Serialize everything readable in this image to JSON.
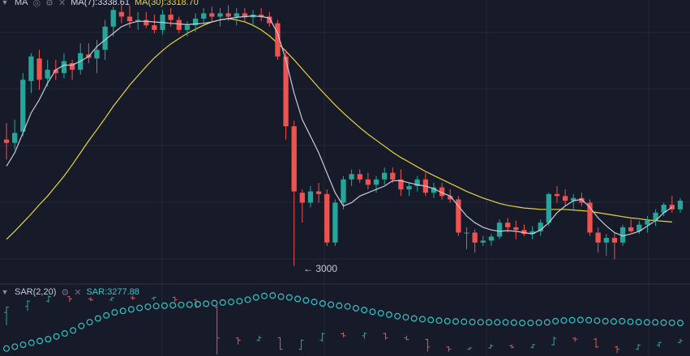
{
  "colors": {
    "background": "#161a29",
    "grid": "#242838",
    "separator": "#2f3446",
    "up": "#26a69a",
    "down": "#ef5350",
    "ma7": "#c9c9dc",
    "ma30": "#e8d43a",
    "sar_dot": "#2ec8c8"
  },
  "main_legend": {
    "collapse_icon": "chevron-down-icon",
    "indicator": "MA",
    "settings_icon": "gear-icon",
    "close_icon": "close-icon",
    "ma7_text": "MA(7):3338.61",
    "ma30_text": "MA(30):3318.70"
  },
  "sar_legend": {
    "collapse_icon": "chevron-down-icon",
    "indicator": "SAR(2,20)",
    "settings_icon": "gear-icon",
    "close_icon": "close-icon",
    "value_text": "SAR:3277.88"
  },
  "annotations": {
    "low_marker": "← 3000"
  },
  "chart_data": {
    "type": "candlestick",
    "series": {
      "candles": [
        [
          3200,
          3225,
          3170,
          3195
        ],
        [
          3195,
          3230,
          3185,
          3210
        ],
        [
          3212,
          3300,
          3205,
          3290
        ],
        [
          3288,
          3330,
          3270,
          3325
        ],
        [
          3322,
          3335,
          3275,
          3290
        ],
        [
          3292,
          3320,
          3280,
          3305
        ],
        [
          3305,
          3320,
          3290,
          3300
        ],
        [
          3300,
          3330,
          3292,
          3318
        ],
        [
          3315,
          3320,
          3290,
          3305
        ],
        [
          3305,
          3345,
          3298,
          3330
        ],
        [
          3328,
          3345,
          3315,
          3323
        ],
        [
          3322,
          3350,
          3300,
          3335
        ],
        [
          3335,
          3380,
          3320,
          3370
        ],
        [
          3370,
          3400,
          3355,
          3395
        ],
        [
          3392,
          3403,
          3375,
          3385
        ],
        [
          3385,
          3402,
          3368,
          3378
        ],
        [
          3378,
          3392,
          3365,
          3380
        ],
        [
          3380,
          3392,
          3368,
          3372
        ],
        [
          3372,
          3388,
          3360,
          3365
        ],
        [
          3365,
          3395,
          3358,
          3388
        ],
        [
          3388,
          3398,
          3370,
          3380
        ],
        [
          3380,
          3385,
          3360,
          3365
        ],
        [
          3365,
          3378,
          3355,
          3372
        ],
        [
          3372,
          3390,
          3362,
          3382
        ],
        [
          3382,
          3398,
          3372,
          3390
        ],
        [
          3390,
          3400,
          3378,
          3385
        ],
        [
          3385,
          3398,
          3370,
          3390
        ],
        [
          3390,
          3402,
          3378,
          3385
        ],
        [
          3385,
          3398,
          3372,
          3390
        ],
        [
          3390,
          3398,
          3378,
          3384
        ],
        [
          3384,
          3395,
          3370,
          3388
        ],
        [
          3388,
          3398,
          3378,
          3385
        ],
        [
          3385,
          3392,
          3370,
          3375
        ],
        [
          3375,
          3380,
          3320,
          3325
        ],
        [
          3325,
          3335,
          3200,
          3220
        ],
        [
          3220,
          3228,
          3010,
          3122
        ],
        [
          3120,
          3125,
          3075,
          3105
        ],
        [
          3105,
          3130,
          3098,
          3122
        ],
        [
          3122,
          3135,
          3105,
          3118
        ],
        [
          3118,
          3125,
          3040,
          3045
        ],
        [
          3045,
          3110,
          3040,
          3105
        ],
        [
          3105,
          3145,
          3095,
          3140
        ],
        [
          3140,
          3155,
          3130,
          3148
        ],
        [
          3148,
          3155,
          3135,
          3140
        ],
        [
          3140,
          3150,
          3125,
          3132
        ],
        [
          3132,
          3145,
          3120,
          3140
        ],
        [
          3140,
          3158,
          3132,
          3150
        ],
        [
          3150,
          3158,
          3135,
          3140
        ],
        [
          3140,
          3155,
          3115,
          3125
        ],
        [
          3125,
          3135,
          3115,
          3130
        ],
        [
          3130,
          3145,
          3122,
          3140
        ],
        [
          3140,
          3150,
          3115,
          3120
        ],
        [
          3120,
          3135,
          3112,
          3128
        ],
        [
          3128,
          3135,
          3110,
          3115
        ],
        [
          3115,
          3125,
          3105,
          3110
        ],
        [
          3110,
          3115,
          3055,
          3060
        ],
        [
          3060,
          3068,
          3035,
          3060
        ],
        [
          3060,
          3065,
          3030,
          3045
        ],
        [
          3045,
          3055,
          3040,
          3048
        ],
        [
          3048,
          3058,
          3040,
          3054
        ],
        [
          3054,
          3080,
          3050,
          3075
        ],
        [
          3075,
          3082,
          3060,
          3068
        ],
        [
          3068,
          3078,
          3050,
          3064
        ],
        [
          3064,
          3072,
          3055,
          3058
        ],
        [
          3058,
          3070,
          3050,
          3062
        ],
        [
          3062,
          3080,
          3055,
          3075
        ],
        [
          3075,
          3120,
          3070,
          3118
        ],
        [
          3118,
          3130,
          3105,
          3115
        ],
        [
          3115,
          3125,
          3100,
          3108
        ],
        [
          3108,
          3118,
          3095,
          3112
        ],
        [
          3112,
          3120,
          3100,
          3105
        ],
        [
          3105,
          3110,
          3055,
          3060
        ],
        [
          3060,
          3068,
          3030,
          3045
        ],
        [
          3045,
          3058,
          3025,
          3052
        ],
        [
          3052,
          3060,
          3020,
          3045
        ],
        [
          3045,
          3072,
          3040,
          3068
        ],
        [
          3068,
          3080,
          3060,
          3062
        ],
        [
          3062,
          3078,
          3058,
          3072
        ],
        [
          3072,
          3085,
          3060,
          3078
        ],
        [
          3078,
          3095,
          3070,
          3090
        ],
        [
          3090,
          3105,
          3085,
          3102
        ],
        [
          3102,
          3115,
          3090,
          3095
        ],
        [
          3095,
          3112,
          3090,
          3108
        ]
      ],
      "ma7_line": [
        3160,
        3180,
        3210,
        3240,
        3260,
        3285,
        3305,
        3312,
        3312,
        3318,
        3325,
        3340,
        3350,
        3360,
        3370,
        3375,
        3378,
        3378,
        3377,
        3376,
        3375,
        3374,
        3373,
        3374,
        3375,
        3377,
        3380,
        3382,
        3384,
        3385,
        3386,
        3385,
        3383,
        3360,
        3320,
        3270,
        3230,
        3205,
        3180,
        3150,
        3120,
        3100,
        3105,
        3115,
        3120,
        3125,
        3130,
        3138,
        3138,
        3135,
        3132,
        3130,
        3126,
        3120,
        3115,
        3100,
        3085,
        3075,
        3068,
        3064,
        3062,
        3063,
        3062,
        3060,
        3058,
        3064,
        3075,
        3090,
        3100,
        3108,
        3110,
        3098,
        3082,
        3070,
        3060,
        3055,
        3058,
        3062,
        3070,
        3078,
        3090,
        3098
      ],
      "ma30_line": [
        3050,
        3062,
        3075,
        3088,
        3102,
        3115,
        3130,
        3145,
        3162,
        3180,
        3198,
        3215,
        3232,
        3250,
        3266,
        3282,
        3296,
        3310,
        3323,
        3334,
        3344,
        3352,
        3360,
        3366,
        3372,
        3377,
        3380,
        3382,
        3380,
        3377,
        3372,
        3365,
        3356,
        3345,
        3333,
        3320,
        3306,
        3292,
        3278,
        3265,
        3252,
        3240,
        3229,
        3218,
        3208,
        3199,
        3190,
        3181,
        3173,
        3166,
        3159,
        3152,
        3146,
        3140,
        3134,
        3128,
        3122,
        3117,
        3112,
        3108,
        3104,
        3101,
        3099,
        3097,
        3096,
        3095,
        3095,
        3095,
        3095,
        3094,
        3093,
        3092,
        3090,
        3088,
        3086,
        3084,
        3082,
        3081,
        3079,
        3078,
        3077,
        3076
      ],
      "sar_candles": [
        [
          3290,
          3330,
          3205,
          3325
        ],
        [
          3330,
          3372,
          3300,
          3365
        ],
        [
          3365,
          3403,
          3355,
          3395
        ],
        [
          3395,
          3398,
          3360,
          3380
        ],
        [
          3380,
          3392,
          3365,
          3375
        ],
        [
          3375,
          3392,
          3365,
          3388
        ],
        [
          3388,
          3402,
          3372,
          3384
        ],
        [
          3384,
          3395,
          3370,
          3390
        ],
        [
          3390,
          3395,
          3360,
          3375
        ],
        [
          3375,
          3378,
          3320,
          3325
        ],
        [
          3325,
          3335,
          3010,
          3120
        ],
        [
          3120,
          3125,
          3075,
          3105
        ],
        [
          3105,
          3135,
          3098,
          3122
        ],
        [
          3122,
          3125,
          3040,
          3045
        ],
        [
          3045,
          3110,
          3040,
          3105
        ],
        [
          3105,
          3155,
          3095,
          3148
        ],
        [
          3148,
          3158,
          3125,
          3135
        ],
        [
          3135,
          3158,
          3115,
          3150
        ],
        [
          3150,
          3155,
          3110,
          3120
        ],
        [
          3120,
          3135,
          3105,
          3110
        ],
        [
          3110,
          3115,
          3030,
          3060
        ],
        [
          3060,
          3065,
          3030,
          3045
        ],
        [
          3045,
          3058,
          3040,
          3054
        ],
        [
          3054,
          3080,
          3050,
          3068
        ],
        [
          3068,
          3078,
          3050,
          3058
        ],
        [
          3058,
          3080,
          3050,
          3075
        ],
        [
          3075,
          3130,
          3070,
          3118
        ],
        [
          3118,
          3125,
          3095,
          3112
        ],
        [
          3112,
          3120,
          3055,
          3060
        ],
        [
          3060,
          3068,
          3020,
          3045
        ],
        [
          3045,
          3080,
          3040,
          3072
        ],
        [
          3072,
          3095,
          3058,
          3090
        ],
        [
          3090,
          3115,
          3085,
          3102
        ]
      ],
      "sar_dots": [
        3050,
        3062,
        3075,
        3088,
        3100,
        3112,
        3130,
        3150,
        3170,
        3200,
        3225,
        3250,
        3270,
        3290,
        3300,
        3310,
        3320,
        3328,
        3332,
        3335,
        3338,
        3340,
        3342,
        3345,
        3348,
        3352,
        3356,
        3360,
        3365,
        3375,
        3390,
        3400,
        3403,
        3395,
        3390,
        3380,
        3370,
        3360,
        3350,
        3342,
        3335,
        3330,
        3318,
        3306,
        3295,
        3285,
        3275,
        3265,
        3258,
        3250,
        3245,
        3240,
        3236,
        3232,
        3230,
        3228,
        3226,
        3225,
        3224,
        3224,
        3224,
        3222,
        3220,
        3220,
        3222,
        3224,
        3232,
        3236,
        3238,
        3240,
        3238,
        3235,
        3232,
        3230,
        3232,
        3228,
        3226,
        3224,
        3224,
        3222,
        3221,
        3220
      ]
    },
    "price_range_main": [
      2990,
      3410
    ],
    "price_range_sar": [
      3000,
      3420
    ],
    "grid": true
  }
}
